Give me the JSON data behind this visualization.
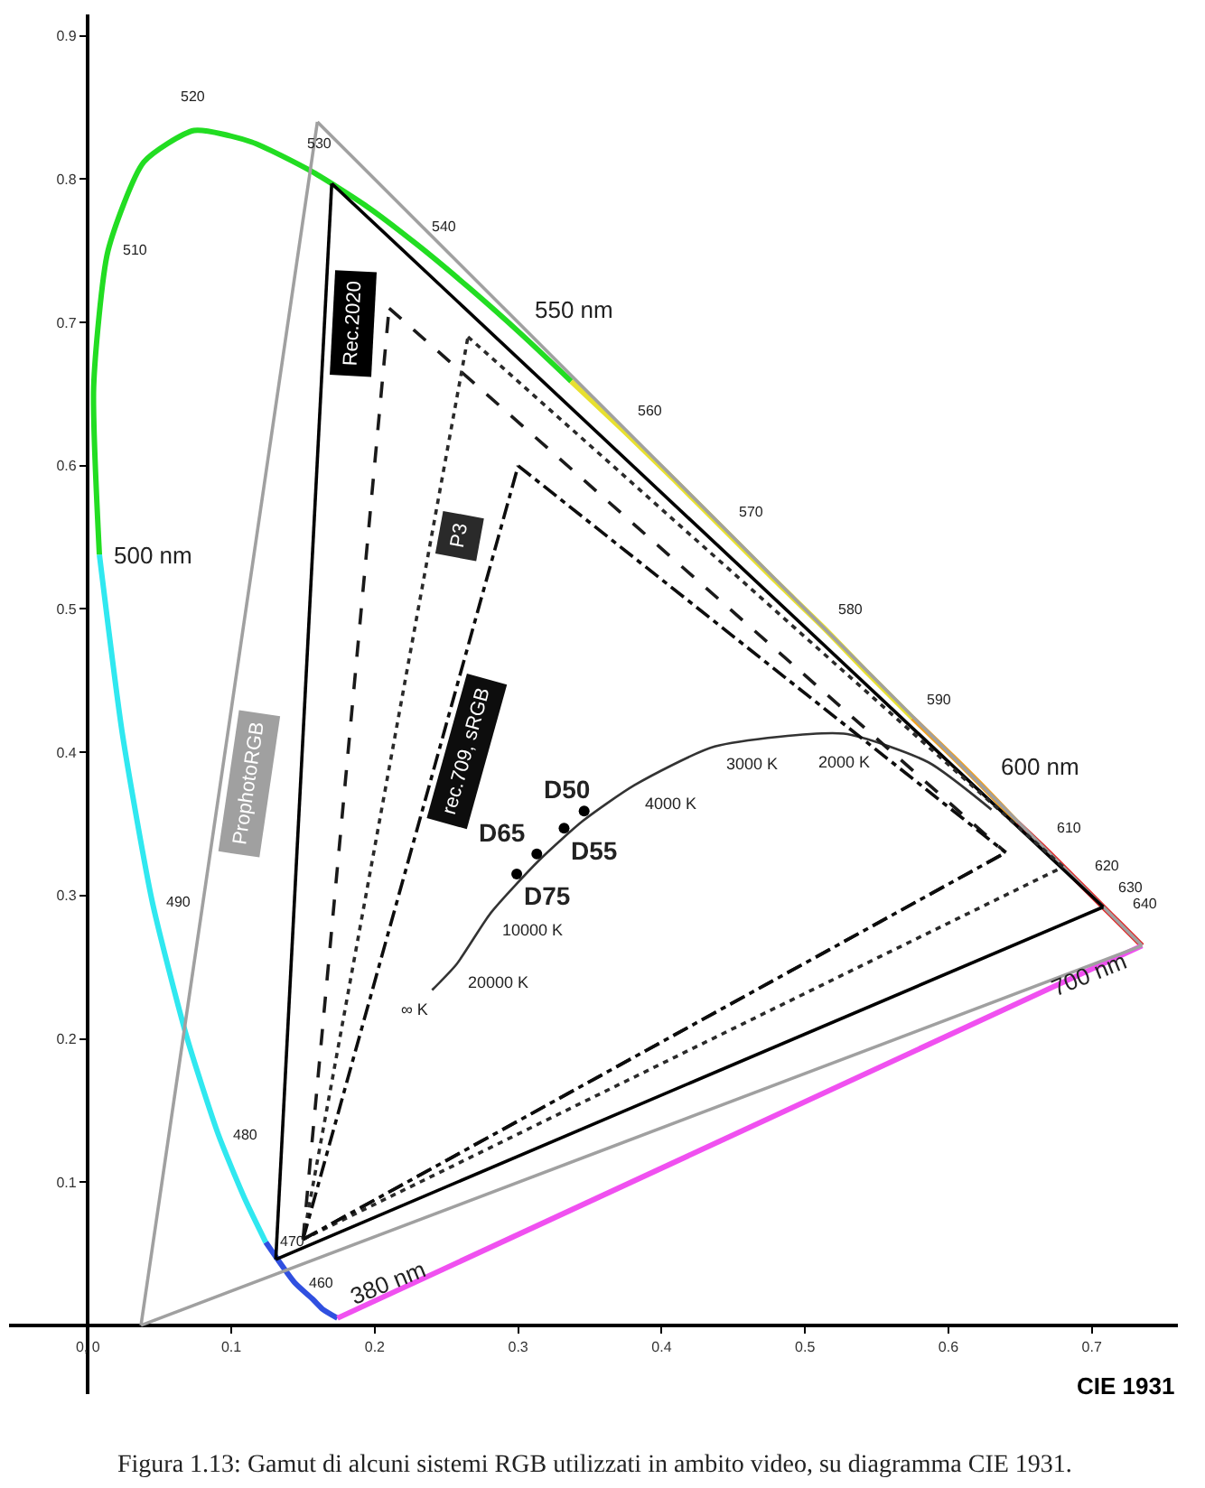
{
  "chart_data": {
    "type": "line",
    "xlabel": "CIE 1931",
    "xlim": [
      -0.055,
      0.76
    ],
    "ylim": [
      -0.048,
      0.915
    ],
    "xticks": [
      {
        "value": 0,
        "label": "0, 0"
      },
      0.1,
      0.2,
      0.3,
      0.4,
      0.5,
      0.6,
      0.7
    ],
    "yticks": [
      0.1,
      0.2,
      0.3,
      0.4,
      0.5,
      0.6,
      0.7,
      0.8,
      0.9
    ],
    "legend": false,
    "series": [
      {
        "color": "#3050e0",
        "line_style": "solid",
        "x": [
          0.174,
          0.164,
          0.157,
          0.144,
          0.124
        ],
        "values": [
          0.005,
          0.011,
          0.018,
          0.03,
          0.058
        ]
      },
      {
        "color": "#30e8f0",
        "line_style": "solid",
        "x": [
          0.124,
          0.11,
          0.091,
          0.069,
          0.045,
          0.024,
          0.008
        ],
        "values": [
          0.058,
          0.087,
          0.133,
          0.201,
          0.295,
          0.413,
          0.538
        ]
      },
      {
        "color": "#22dd22",
        "line_style": "solid",
        "x": [
          0.008,
          0.004,
          0.014,
          0.039,
          0.074,
          0.114,
          0.155,
          0.193,
          0.23,
          0.266,
          0.302,
          0.337
        ],
        "values": [
          0.538,
          0.655,
          0.75,
          0.812,
          0.834,
          0.826,
          0.806,
          0.782,
          0.754,
          0.724,
          0.692,
          0.659
        ]
      },
      {
        "color": "#e8e030",
        "line_style": "solid",
        "x": [
          0.337,
          0.373,
          0.409,
          0.444,
          0.479,
          0.513,
          0.545,
          0.575
        ],
        "values": [
          0.659,
          0.625,
          0.59,
          0.555,
          0.52,
          0.487,
          0.454,
          0.424
        ]
      },
      {
        "color": "#f0a020",
        "line_style": "solid",
        "x": [
          0.575,
          0.603,
          0.627,
          0.648
        ],
        "values": [
          0.424,
          0.397,
          0.373,
          0.351
        ]
      },
      {
        "color": "#e02020",
        "line_style": "solid",
        "x": [
          0.648,
          0.666,
          0.692,
          0.708,
          0.719,
          0.735
        ],
        "values": [
          0.351,
          0.334,
          0.308,
          0.292,
          0.281,
          0.265
        ]
      },
      {
        "color": "#f050f0",
        "line_style": "solid",
        "x": [
          0.735,
          0.174
        ],
        "values": [
          0.265,
          0.005
        ]
      },
      {
        "color": "#333333",
        "line_style": "solid",
        "x": [
          0.24,
          0.257,
          0.281,
          0.314,
          0.345,
          0.381,
          0.437,
          0.527,
          0.586,
          0.63
        ],
        "values": [
          0.234,
          0.252,
          0.288,
          0.324,
          0.352,
          0.377,
          0.404,
          0.413,
          0.393,
          0.36
        ]
      },
      {
        "name": "ProphotoRGB",
        "color": "#a0a0a0",
        "line_style": "solid",
        "x": [
          0.037,
          0.16
        ],
        "values": [
          0.0,
          0.84
        ]
      },
      {
        "color": "#a0a0a0",
        "line_style": "solid",
        "x": [
          0.037,
          0.735
        ],
        "values": [
          0.0,
          0.265
        ]
      },
      {
        "color": "#a0a0a0",
        "line_style": "solid",
        "x": [
          0.16,
          0.735
        ],
        "values": [
          0.84,
          0.265
        ]
      },
      {
        "name": "Rec.2020",
        "color": "#000000",
        "line_style": "solid",
        "x": [
          0.131,
          0.17
        ],
        "values": [
          0.046,
          0.797
        ]
      },
      {
        "color": "#000000",
        "line_style": "solid",
        "x": [
          0.131,
          0.708
        ],
        "values": [
          0.046,
          0.292
        ]
      },
      {
        "color": "#000000",
        "line_style": "solid",
        "x": [
          0.17,
          0.708
        ],
        "values": [
          0.797,
          0.292
        ]
      },
      {
        "color": "#1a1a1a",
        "line_style": "dashed",
        "x": [
          0.15,
          0.21
        ],
        "values": [
          0.06,
          0.71
        ]
      },
      {
        "color": "#1a1a1a",
        "line_style": "dashed",
        "x": [
          0.15,
          0.64
        ],
        "values": [
          0.06,
          0.33
        ]
      },
      {
        "color": "#1a1a1a",
        "line_style": "dashed",
        "x": [
          0.21,
          0.64
        ],
        "values": [
          0.71,
          0.33
        ]
      },
      {
        "name": "P3",
        "color": "#2a2a2a",
        "line_style": "dotted",
        "x": [
          0.15,
          0.265
        ],
        "values": [
          0.06,
          0.69
        ]
      },
      {
        "color": "#2a2a2a",
        "line_style": "dotted",
        "x": [
          0.15,
          0.68
        ],
        "values": [
          0.06,
          0.32
        ]
      },
      {
        "color": "#2a2a2a",
        "line_style": "dotted",
        "x": [
          0.265,
          0.68
        ],
        "values": [
          0.69,
          0.32
        ]
      },
      {
        "name": "rec.709, sRGB",
        "color": "#0d0d0d",
        "line_style": "dashdot",
        "x": [
          0.15,
          0.3
        ],
        "values": [
          0.06,
          0.6
        ]
      },
      {
        "color": "#0d0d0d",
        "line_style": "dashdot",
        "x": [
          0.15,
          0.64
        ],
        "values": [
          0.06,
          0.33
        ]
      },
      {
        "color": "#0d0d0d",
        "line_style": "dashdot",
        "x": [
          0.3,
          0.64
        ],
        "values": [
          0.6,
          0.33
        ]
      },
      {
        "type": "scatter",
        "marker": "circle",
        "color": "#000000",
        "x": [
          0.346,
          0.332,
          0.313,
          0.299
        ],
        "values": [
          0.359,
          0.347,
          0.329,
          0.315
        ]
      }
    ],
    "annotations": [
      {
        "text": "460",
        "x": 0.144,
        "y": 0.03
      },
      {
        "text": "470",
        "x": 0.124,
        "y": 0.058
      },
      {
        "text": "480",
        "x": 0.091,
        "y": 0.133
      },
      {
        "text": "490",
        "x": 0.045,
        "y": 0.295
      },
      {
        "text": "500 nm",
        "x": 0.008,
        "y": 0.538
      },
      {
        "text": "510",
        "x": 0.014,
        "y": 0.75
      },
      {
        "text": "520",
        "x": 0.074,
        "y": 0.834
      },
      {
        "text": "530",
        "x": 0.155,
        "y": 0.806
      },
      {
        "text": "540",
        "x": 0.23,
        "y": 0.754
      },
      {
        "text": "550 nm",
        "x": 0.302,
        "y": 0.692
      },
      {
        "text": "560",
        "x": 0.373,
        "y": 0.625
      },
      {
        "text": "570",
        "x": 0.444,
        "y": 0.555
      },
      {
        "text": "580",
        "x": 0.513,
        "y": 0.487
      },
      {
        "text": "590",
        "x": 0.575,
        "y": 0.424
      },
      {
        "text": "600 nm",
        "x": 0.627,
        "y": 0.373
      },
      {
        "text": "610",
        "x": 0.666,
        "y": 0.334
      },
      {
        "text": "620",
        "x": 0.692,
        "y": 0.308
      },
      {
        "text": "630",
        "x": 0.708,
        "y": 0.292
      },
      {
        "text": "640",
        "x": 0.719,
        "y": 0.281
      },
      {
        "text": "700 nm",
        "x": 0.735,
        "y": 0.265
      },
      {
        "text": "380 nm",
        "x": 0.174,
        "y": 0.005
      },
      {
        "text": "∞ K",
        "x": 0.24,
        "y": 0.234
      },
      {
        "text": "20000 K",
        "x": 0.257,
        "y": 0.252
      },
      {
        "text": "10000 K",
        "x": 0.281,
        "y": 0.288
      },
      {
        "text": "4000 K",
        "x": 0.381,
        "y": 0.377
      },
      {
        "text": "3000 K",
        "x": 0.437,
        "y": 0.404
      },
      {
        "text": "2000 K",
        "x": 0.527,
        "y": 0.413
      },
      {
        "text": "D50",
        "x": 0.346,
        "y": 0.359
      },
      {
        "text": "D55",
        "x": 0.332,
        "y": 0.347
      },
      {
        "text": "D65",
        "x": 0.313,
        "y": 0.329
      },
      {
        "text": "D75",
        "x": 0.299,
        "y": 0.315
      },
      "Figura 1.13: Gamut di alcuni sistemi RGB utilizzati in ambito video, su diagramma CIE 1931."
    ]
  }
}
